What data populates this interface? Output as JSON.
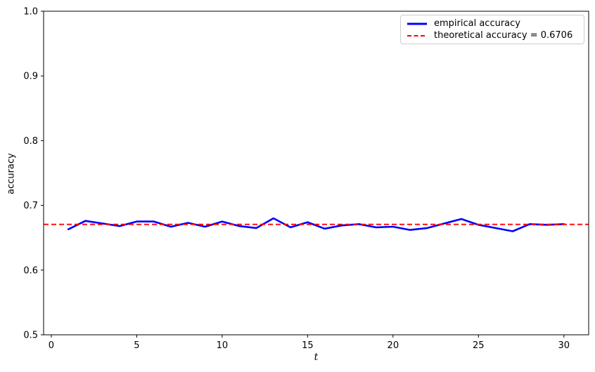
{
  "chart_data": {
    "type": "line",
    "title": "",
    "xlabel": "t",
    "ylabel": "accuracy",
    "xlim": [
      -0.45,
      31.45
    ],
    "ylim": [
      0.5,
      1.0
    ],
    "xticks": [
      0,
      5,
      10,
      15,
      20,
      25,
      30
    ],
    "xtick_labels": [
      "0",
      "5",
      "10",
      "15",
      "20",
      "25",
      "30"
    ],
    "yticks": [
      0.5,
      0.6,
      0.7,
      0.8,
      0.9,
      1.0
    ],
    "ytick_labels": [
      "0.5",
      "0.6",
      "0.7",
      "0.8",
      "0.9",
      "1.0"
    ],
    "grid": false,
    "legend_position": "upper right",
    "x": [
      1,
      2,
      3,
      4,
      5,
      6,
      7,
      8,
      9,
      10,
      11,
      12,
      13,
      14,
      15,
      16,
      17,
      18,
      19,
      20,
      21,
      22,
      23,
      24,
      25,
      26,
      27,
      28,
      29,
      30
    ],
    "series": [
      {
        "name": "empirical accuracy",
        "kind": "line",
        "style": "solid",
        "color": "#0000ff",
        "values": [
          0.663,
          0.676,
          0.672,
          0.668,
          0.675,
          0.675,
          0.667,
          0.673,
          0.667,
          0.675,
          0.668,
          0.665,
          0.68,
          0.666,
          0.674,
          0.664,
          0.669,
          0.671,
          0.666,
          0.667,
          0.662,
          0.665,
          0.672,
          0.679,
          0.67,
          0.665,
          0.66,
          0.671,
          0.67,
          0.671
        ]
      },
      {
        "name": "theoretical accuracy = 0.6706",
        "kind": "hline",
        "style": "dashed",
        "color": "#ff0000",
        "value": 0.6706
      }
    ],
    "colors": {
      "spine": "#000000",
      "legend_border": "#cccccc",
      "background": "#ffffff"
    }
  }
}
